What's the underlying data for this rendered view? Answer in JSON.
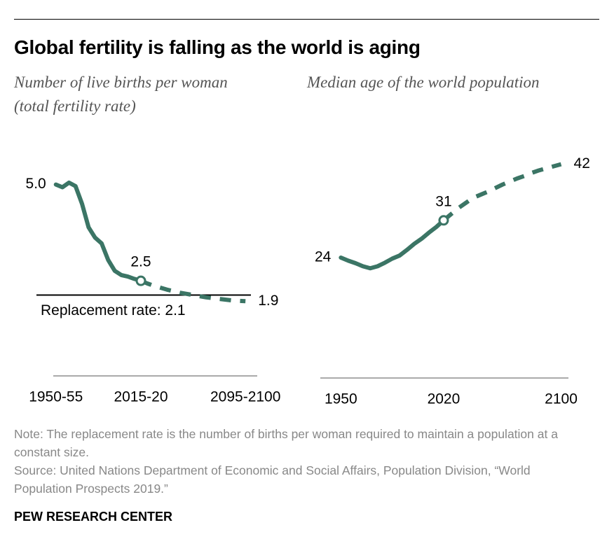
{
  "title": "Global fertility is falling as the world is aging",
  "chart_data": [
    {
      "type": "line",
      "subtitle": "Number of live births per woman (total fertility rate)",
      "x": [
        1950,
        1955,
        1960,
        1965,
        1970,
        1975,
        1980,
        1985,
        1990,
        1995,
        2000,
        2005,
        2010,
        2015,
        2020,
        2025,
        2030,
        2035,
        2040,
        2045,
        2050,
        2055,
        2060,
        2065,
        2070,
        2075,
        2080,
        2085,
        2090,
        2095
      ],
      "xlim": [
        1948,
        2104
      ],
      "xticks": [
        {
          "value": 1950,
          "label": "1950-55"
        },
        {
          "value": 2015,
          "label": "2015-20"
        },
        {
          "value": 2095,
          "label": "2095-2100"
        }
      ],
      "ylim": [
        0,
        5.5
      ],
      "series": [
        {
          "color": "#3b7565",
          "dashed": false,
          "values": [
            4.97,
            4.9,
            5.02,
            4.93,
            4.47,
            3.86,
            3.59,
            3.44,
            3.01,
            2.73,
            2.62,
            2.58,
            2.52,
            2.47,
            null,
            null,
            null,
            null,
            null,
            null,
            null,
            null,
            null,
            null,
            null,
            null,
            null,
            null,
            null,
            null
          ],
          "value_labels": [
            "5.0",
            null,
            null,
            null,
            null,
            null,
            null,
            null,
            null,
            null,
            null,
            null,
            null,
            "2.5",
            null,
            null,
            null,
            null,
            null,
            null,
            null,
            null,
            null,
            null,
            null,
            null,
            null,
            null,
            null,
            null
          ]
        },
        {
          "color": "#3b7565",
          "dashed": true,
          "values": [
            null,
            null,
            null,
            null,
            null,
            null,
            null,
            null,
            null,
            null,
            null,
            null,
            null,
            2.47,
            2.4,
            2.34,
            2.29,
            2.24,
            2.2,
            2.16,
            2.13,
            2.1,
            2.07,
            2.04,
            2.02,
            2.0,
            1.98,
            1.96,
            1.95,
            1.94
          ],
          "value_labels": [
            null,
            null,
            null,
            null,
            null,
            null,
            null,
            null,
            null,
            null,
            null,
            null,
            null,
            null,
            null,
            null,
            null,
            null,
            null,
            null,
            null,
            null,
            null,
            null,
            null,
            null,
            null,
            null,
            null,
            "1.9"
          ]
        }
      ],
      "reference_line": {
        "value": 2.1,
        "label": "Replacement rate: 2.1",
        "color": "#000000"
      }
    },
    {
      "type": "line",
      "subtitle": "Median age of the world population",
      "x": [
        1950,
        1955,
        1960,
        1965,
        1970,
        1975,
        1980,
        1985,
        1990,
        1995,
        2000,
        2005,
        2010,
        2015,
        2020,
        2025,
        2030,
        2035,
        2040,
        2045,
        2050,
        2055,
        2060,
        2065,
        2070,
        2075,
        2080,
        2085,
        2090,
        2095,
        2100
      ],
      "xlim": [
        1936,
        2105
      ],
      "xticks": [
        1950,
        2020,
        2100
      ],
      "ylim": [
        0,
        45
      ],
      "series": [
        {
          "color": "#3b7565",
          "dashed": false,
          "values": [
            23.6,
            23.0,
            22.5,
            21.9,
            21.5,
            21.9,
            22.6,
            23.4,
            24.0,
            25.1,
            26.3,
            27.3,
            28.5,
            29.6,
            30.9,
            null,
            null,
            null,
            null,
            null,
            null,
            null,
            null,
            null,
            null,
            null,
            null,
            null,
            null,
            null,
            null
          ],
          "value_labels": [
            "24",
            null,
            null,
            null,
            null,
            null,
            null,
            null,
            null,
            null,
            null,
            null,
            null,
            null,
            "31",
            null,
            null,
            null,
            null,
            null,
            null,
            null,
            null,
            null,
            null,
            null,
            null,
            null,
            null,
            null,
            null
          ]
        },
        {
          "color": "#3b7565",
          "dashed": true,
          "values": [
            null,
            null,
            null,
            null,
            null,
            null,
            null,
            null,
            null,
            null,
            null,
            null,
            null,
            null,
            30.9,
            32.1,
            33.3,
            34.3,
            35.3,
            35.9,
            36.5,
            37.2,
            37.9,
            38.5,
            39.1,
            39.6,
            40.2,
            40.7,
            41.1,
            41.5,
            41.9
          ],
          "value_labels": [
            null,
            null,
            null,
            null,
            null,
            null,
            null,
            null,
            null,
            null,
            null,
            null,
            null,
            null,
            null,
            null,
            null,
            null,
            null,
            null,
            null,
            null,
            null,
            null,
            null,
            null,
            null,
            null,
            null,
            null,
            "42"
          ]
        }
      ]
    }
  ],
  "note": "Note: The replacement rate is the number of births per woman required to maintain a population at a constant size.",
  "source": "Source: United Nations Department of Economic and Social Affairs, Population Division, “World Population Prospects 2019.”",
  "brand": "PEW RESEARCH CENTER"
}
